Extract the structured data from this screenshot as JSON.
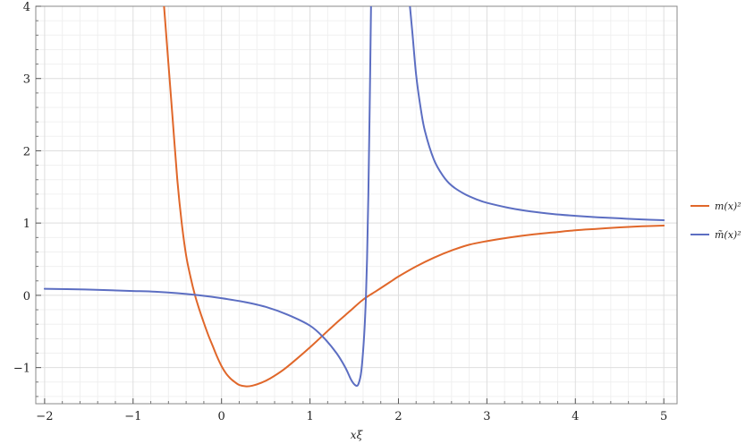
{
  "chart_data": {
    "type": "line",
    "xlabel": "xξ",
    "ylabel": "",
    "xlim": [
      -2.1,
      5.15
    ],
    "ylim": [
      -1.5,
      4
    ],
    "xticks": [
      -2,
      -1,
      0,
      1,
      2,
      3,
      4,
      5
    ],
    "xtick_labels": [
      "−2",
      "−1",
      "0",
      "1",
      "2",
      "3",
      "4",
      "5"
    ],
    "yticks": [
      -1,
      0,
      1,
      2,
      3,
      4
    ],
    "ytick_labels": [
      "−1",
      "0",
      "1",
      "2",
      "3",
      "4"
    ],
    "grid": true,
    "legend_position": "right",
    "series": [
      {
        "name": "m(x)²",
        "color": "#e0672a",
        "points": [
          [
            -0.65,
            4.0
          ],
          [
            -0.6,
            3.2
          ],
          [
            -0.55,
            2.4
          ],
          [
            -0.5,
            1.6
          ],
          [
            -0.45,
            1.0
          ],
          [
            -0.4,
            0.55
          ],
          [
            -0.35,
            0.25
          ],
          [
            -0.3,
            0.0
          ],
          [
            -0.25,
            -0.2
          ],
          [
            -0.2,
            -0.38
          ],
          [
            -0.15,
            -0.55
          ],
          [
            -0.1,
            -0.7
          ],
          [
            -0.05,
            -0.85
          ],
          [
            0.0,
            -0.98
          ],
          [
            0.05,
            -1.08
          ],
          [
            0.1,
            -1.15
          ],
          [
            0.15,
            -1.2
          ],
          [
            0.2,
            -1.24
          ],
          [
            0.28,
            -1.26
          ],
          [
            0.35,
            -1.25
          ],
          [
            0.45,
            -1.21
          ],
          [
            0.55,
            -1.15
          ],
          [
            0.7,
            -1.03
          ],
          [
            0.85,
            -0.88
          ],
          [
            1.0,
            -0.72
          ],
          [
            1.15,
            -0.55
          ],
          [
            1.3,
            -0.38
          ],
          [
            1.45,
            -0.22
          ],
          [
            1.6,
            -0.06
          ],
          [
            1.75,
            0.06
          ],
          [
            1.9,
            0.18
          ],
          [
            2.0,
            0.26
          ],
          [
            2.2,
            0.4
          ],
          [
            2.4,
            0.52
          ],
          [
            2.6,
            0.62
          ],
          [
            2.8,
            0.7
          ],
          [
            3.0,
            0.75
          ],
          [
            3.25,
            0.8
          ],
          [
            3.5,
            0.84
          ],
          [
            3.75,
            0.87
          ],
          [
            4.0,
            0.9
          ],
          [
            4.25,
            0.92
          ],
          [
            4.5,
            0.94
          ],
          [
            4.75,
            0.955
          ],
          [
            5.0,
            0.965
          ]
        ]
      },
      {
        "name": "m̃(x)²",
        "color": "#5c6ec2",
        "points": [
          [
            -2.0,
            0.09
          ],
          [
            -1.75,
            0.085
          ],
          [
            -1.5,
            0.08
          ],
          [
            -1.25,
            0.07
          ],
          [
            -1.0,
            0.06
          ],
          [
            -0.75,
            0.05
          ],
          [
            -0.5,
            0.03
          ],
          [
            -0.25,
            0.0
          ],
          [
            0.0,
            -0.04
          ],
          [
            0.25,
            -0.09
          ],
          [
            0.5,
            -0.16
          ],
          [
            0.75,
            -0.27
          ],
          [
            1.0,
            -0.42
          ],
          [
            1.15,
            -0.58
          ],
          [
            1.3,
            -0.8
          ],
          [
            1.4,
            -1.0
          ],
          [
            1.47,
            -1.18
          ],
          [
            1.52,
            -1.25
          ],
          [
            1.55,
            -1.22
          ],
          [
            1.58,
            -1.05
          ],
          [
            1.61,
            -0.6
          ],
          [
            1.63,
            -0.1
          ],
          [
            1.645,
            0.5
          ],
          [
            1.66,
            1.4
          ],
          [
            1.675,
            2.6
          ],
          [
            1.69,
            4.0
          ],
          null,
          [
            2.13,
            4.0
          ],
          [
            2.16,
            3.6
          ],
          [
            2.2,
            3.05
          ],
          [
            2.25,
            2.6
          ],
          [
            2.3,
            2.27
          ],
          [
            2.4,
            1.88
          ],
          [
            2.5,
            1.66
          ],
          [
            2.6,
            1.52
          ],
          [
            2.75,
            1.4
          ],
          [
            2.9,
            1.32
          ],
          [
            3.0,
            1.28
          ],
          [
            3.25,
            1.21
          ],
          [
            3.5,
            1.16
          ],
          [
            3.75,
            1.125
          ],
          [
            4.0,
            1.1
          ],
          [
            4.25,
            1.08
          ],
          [
            4.5,
            1.065
          ],
          [
            4.75,
            1.05
          ],
          [
            5.0,
            1.04
          ]
        ]
      }
    ]
  }
}
